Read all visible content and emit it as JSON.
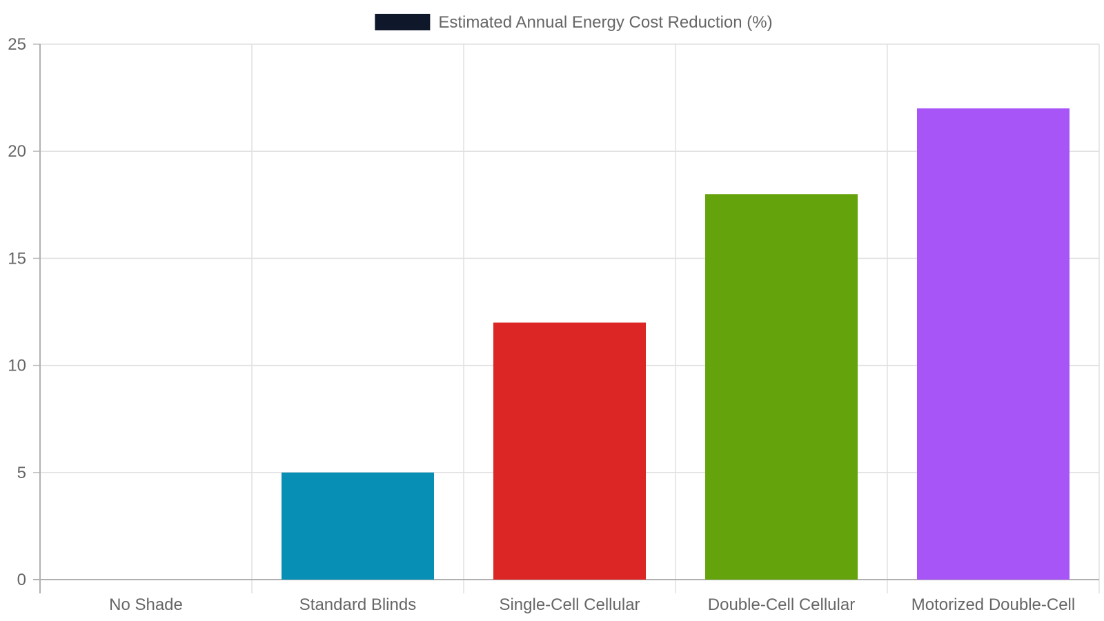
{
  "chart_data": {
    "type": "bar",
    "title": "",
    "xlabel": "",
    "ylabel": "",
    "categories": [
      "No Shade",
      "Standard Blinds",
      "Single-Cell Cellular",
      "Double-Cell Cellular",
      "Motorized Double-Cell"
    ],
    "series": [
      {
        "name": "Estimated Annual Energy Cost Reduction (%)",
        "values": [
          0,
          5,
          12,
          18,
          22
        ],
        "colors": [
          "#0b1628",
          "#088fb6",
          "#dc2626",
          "#65a30d",
          "#a855f7"
        ]
      }
    ],
    "legend": {
      "position": "top-center",
      "swatch_color": "#0f172a"
    },
    "ylim": [
      0,
      25
    ],
    "y_ticks": [
      "0",
      "5",
      "10",
      "15",
      "20",
      "25"
    ],
    "grid": true
  }
}
